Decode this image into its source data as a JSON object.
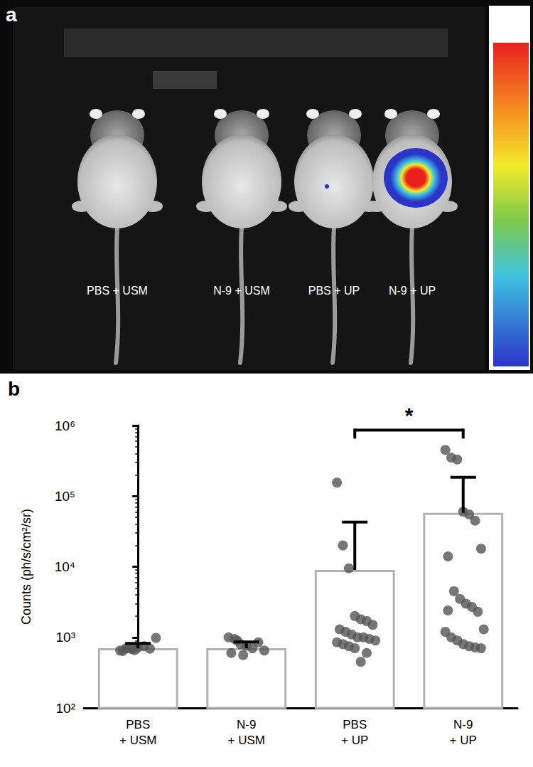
{
  "image": {
    "panel_label": "a",
    "labels": [
      "PBS + USM",
      "N-9 + USM",
      "PBS + UP",
      "N-9 + UP"
    ]
  },
  "chart_data": {
    "type": "bar",
    "title": "b",
    "y_label": "Counts (ph/s/cm²/sr)",
    "categories": [
      "PBS\n+ USM",
      "N-9\n+ USM",
      "PBS\n+ UP",
      "N-9\n+ UP"
    ],
    "series": [
      {
        "type": "bar",
        "color": "#b3b3b3",
        "values": [
          700,
          700,
          9000,
          58000
        ],
        "errors": [
          120,
          160,
          34000,
          127000
        ]
      },
      {
        "type": "scatter",
        "color": "#555555",
        "marker": "circle",
        "values": [
          [
            650,
            700,
            680,
            720,
            750,
            690,
            980,
            640,
            710,
            660
          ],
          [
            1000,
            950,
            800,
            760,
            700,
            850,
            650,
            600,
            900,
            560
          ],
          [
            155000,
            20000,
            9500,
            2000,
            1800,
            1700,
            1500,
            1300,
            1200,
            1100,
            1000,
            1000,
            950,
            900,
            850,
            800,
            750,
            700,
            450,
            600
          ],
          [
            450000,
            350000,
            330000,
            60000,
            55000,
            45000,
            18000,
            14000,
            4500,
            3500,
            3000,
            2700,
            2300,
            1300,
            1200,
            1000,
            900,
            800,
            750,
            720,
            700,
            2400
          ]
        ]
      }
    ],
    "ylim": [
      100,
      1000000
    ],
    "yticks": [
      {
        "value": 100,
        "label": "10²"
      },
      {
        "value": 1000,
        "label": "10³"
      },
      {
        "value": 10000,
        "label": "10⁴"
      },
      {
        "value": 100000,
        "label": "10⁵"
      },
      {
        "value": 1000000,
        "label": "10⁶"
      }
    ],
    "log": "y",
    "grid": false,
    "annotations": [
      {
        "text": "*",
        "between": [
          "PBS\n+ UP",
          "N-9\n+ UP"
        ]
      }
    ]
  }
}
